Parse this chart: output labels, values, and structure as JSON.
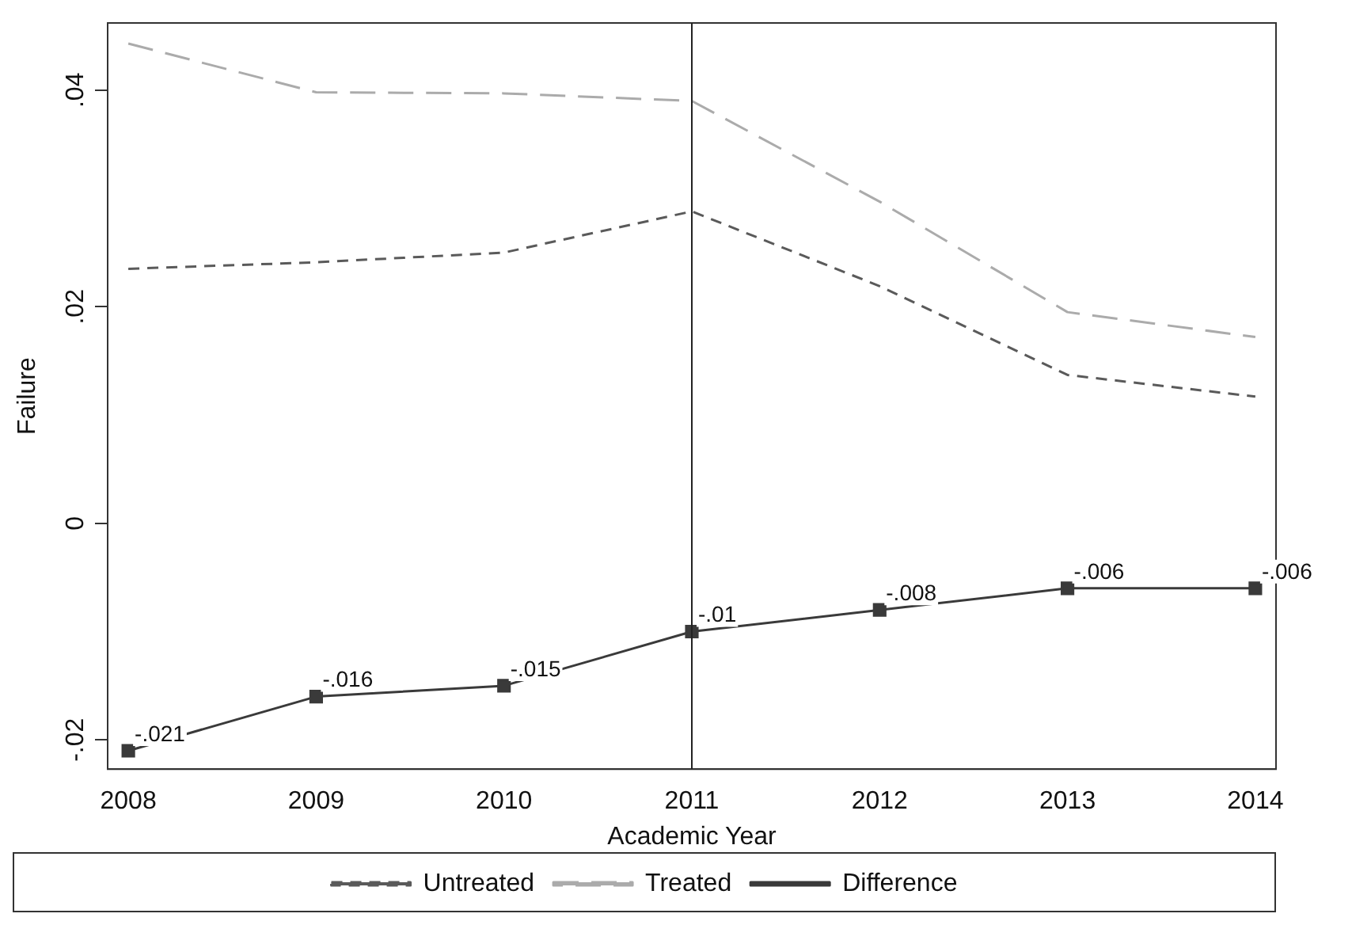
{
  "chart_data": {
    "type": "line",
    "xlabel": "Academic Year",
    "ylabel": "Failure",
    "x": [
      2008,
      2009,
      2010,
      2011,
      2012,
      2013,
      2014
    ],
    "xlim": [
      2007.89,
      2014.11
    ],
    "xticks": [
      2008,
      2009,
      2010,
      2011,
      2012,
      2013,
      2014
    ],
    "ylim": [
      -0.0227,
      0.0462
    ],
    "yticks": [
      {
        "value": -0.02,
        "label": "-.02"
      },
      {
        "value": 0,
        "label": "0"
      },
      {
        "value": 0.02,
        "label": ".02"
      },
      {
        "value": 0.04,
        "label": ".04"
      }
    ],
    "series": [
      {
        "name": "Untreated",
        "color": "#5a5a5a",
        "line_style": "dashed",
        "marker": "none",
        "values": [
          0.0235,
          0.0241,
          0.025,
          0.0288,
          0.0219,
          0.0137,
          0.0117
        ]
      },
      {
        "name": "Treated",
        "color": "#ababab",
        "line_style": "dashed",
        "marker": "none",
        "values": [
          0.0443,
          0.0398,
          0.0397,
          0.039,
          0.0297,
          0.0195,
          0.0172
        ]
      },
      {
        "name": "Difference",
        "color": "#3a3a3a",
        "line_style": "solid",
        "marker": "square",
        "values": [
          -0.021,
          -0.016,
          -0.015,
          -0.01,
          -0.008,
          -0.006,
          -0.006
        ],
        "value_labels": [
          "-.021",
          "-.016",
          "-.015",
          "-.01",
          "-.008",
          "-.006",
          "-.006"
        ]
      }
    ],
    "ref_lines": [
      {
        "axis": "x",
        "value": 2011,
        "color": "#222222",
        "line_style": "solid"
      }
    ],
    "grid": false,
    "legend": "bottom"
  }
}
